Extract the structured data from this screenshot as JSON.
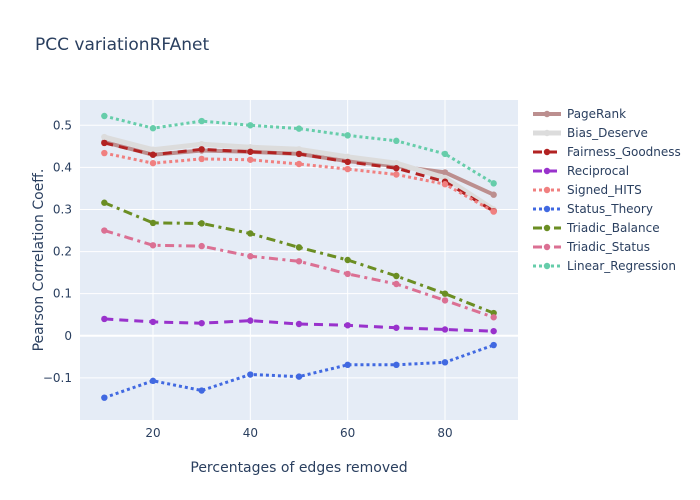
{
  "chart_data": {
    "type": "line",
    "title": "PCC variationRFAnet",
    "xlabel": "Percentages of edges removed",
    "ylabel": "Pearson Correlation Coeff.",
    "xlim": [
      5,
      95
    ],
    "ylim": [
      -0.2,
      0.56
    ],
    "xticks": [
      20,
      40,
      60,
      80
    ],
    "yticks": [
      -0.1,
      0,
      0.1,
      0.2,
      0.3,
      0.4,
      0.5
    ],
    "ytick_labels": [
      "−0.1",
      "0",
      "0.1",
      "0.2",
      "0.3",
      "0.4",
      "0.5"
    ],
    "grid": true,
    "legend_position": "right",
    "x": [
      10,
      20,
      30,
      40,
      50,
      60,
      70,
      80,
      90
    ],
    "series": [
      {
        "name": "PageRank",
        "color": "#bc8f8f",
        "dash": "solid",
        "width": 4,
        "values": [
          0.46,
          0.43,
          0.44,
          0.437,
          0.432,
          0.415,
          0.403,
          0.388,
          0.335
        ]
      },
      {
        "name": "Bias_Deserve",
        "color": "#dcdcdc",
        "dash": "solid",
        "width": 5,
        "values": [
          0.472,
          0.442,
          0.455,
          0.448,
          0.443,
          0.425,
          0.41,
          0.375,
          0.3
        ]
      },
      {
        "name": "Fairness_Goodness",
        "color": "#b22222",
        "dash": "dash",
        "width": 3,
        "values": [
          0.458,
          0.43,
          0.443,
          0.437,
          0.432,
          0.413,
          0.398,
          0.366,
          0.296
        ]
      },
      {
        "name": "Reciprocal",
        "color": "#9932cc",
        "dash": "dash",
        "width": 3,
        "values": [
          0.04,
          0.033,
          0.03,
          0.036,
          0.028,
          0.025,
          0.019,
          0.015,
          0.011
        ]
      },
      {
        "name": "Signed_HITS",
        "color": "#f08080",
        "dash": "dot",
        "width": 3,
        "values": [
          0.434,
          0.41,
          0.42,
          0.418,
          0.408,
          0.396,
          0.383,
          0.36,
          0.295
        ]
      },
      {
        "name": "Status_Theory",
        "color": "#4169e1",
        "dash": "dot",
        "width": 3,
        "values": [
          -0.147,
          -0.107,
          -0.13,
          -0.092,
          -0.097,
          -0.069,
          -0.069,
          -0.063,
          -0.022
        ]
      },
      {
        "name": "Triadic_Balance",
        "color": "#6b8e23",
        "dash": "dashdot",
        "width": 3,
        "values": [
          0.316,
          0.268,
          0.267,
          0.243,
          0.21,
          0.18,
          0.142,
          0.1,
          0.054
        ]
      },
      {
        "name": "Triadic_Status",
        "color": "#db7093",
        "dash": "dashdot",
        "width": 3,
        "values": [
          0.25,
          0.215,
          0.213,
          0.189,
          0.177,
          0.147,
          0.123,
          0.084,
          0.044
        ]
      },
      {
        "name": "Linear_Regression",
        "color": "#66cdaa",
        "dash": "dot",
        "width": 3,
        "values": [
          0.522,
          0.493,
          0.51,
          0.5,
          0.492,
          0.476,
          0.463,
          0.432,
          0.362
        ]
      }
    ]
  }
}
